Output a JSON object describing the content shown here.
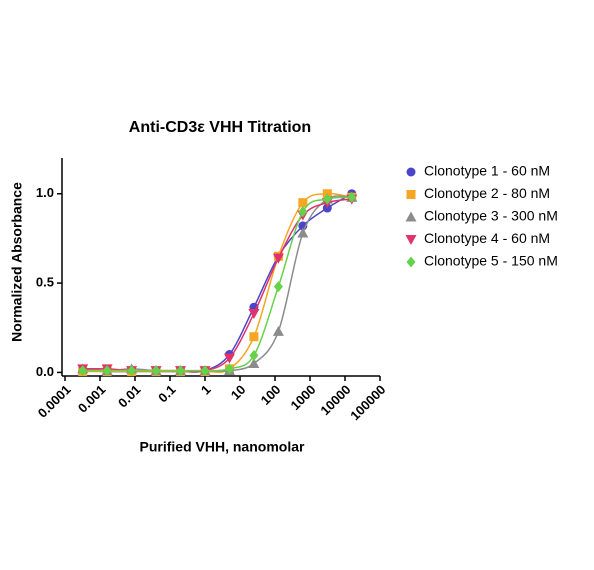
{
  "chart_data": {
    "type": "scatter-line",
    "title": "Anti-CD3ε VHH Titration",
    "x_label": "Purified VHH, nanomolar",
    "y_label": "Normalized Absorbance",
    "xscale": "log",
    "xlim": [
      0.0001,
      100000
    ],
    "xticks": [
      0.0001,
      0.001,
      0.01,
      0.1,
      1,
      10,
      100,
      1000,
      10000,
      100000
    ],
    "ylim": [
      -0.02,
      1.2
    ],
    "yticks": [
      {
        "value": 0,
        "label": "0.0"
      },
      {
        "value": 0.5,
        "label": "0.5"
      },
      {
        "value": 1,
        "label": "1.0"
      }
    ],
    "x": [
      0.00032,
      0.0016,
      0.008,
      0.04,
      0.2,
      1,
      5,
      25,
      125,
      625,
      3125,
      15625
    ],
    "series": [
      {
        "name": "Clonotype 1 - 60 nM",
        "color": "#4b45c9",
        "label_color": "#4b45c9",
        "marker": "circle",
        "values": [
          0.01,
          0.005,
          0.005,
          0.005,
          0.005,
          0.01,
          0.1,
          0.365,
          0.65,
          0.82,
          0.92,
          1.0
        ]
      },
      {
        "name": "Clonotype 2 - 80 nM",
        "color": "#f5a623",
        "label_color": "#f5a623",
        "marker": "square",
        "values": [
          0.005,
          0.005,
          0.005,
          0.005,
          0.005,
          0.005,
          0.02,
          0.2,
          0.65,
          0.95,
          1.0,
          0.98
        ]
      },
      {
        "name": "Clonotype 3 - 300 nM",
        "color": "#8c8c8c",
        "label_color": "#8c8c8c",
        "marker": "triangle",
        "values": [
          0.02,
          0.01,
          0.02,
          0.01,
          0.01,
          0.01,
          0.01,
          0.05,
          0.23,
          0.78,
          0.97,
          0.98
        ]
      },
      {
        "name": "Clonotype 4 - 60 nM",
        "color": "#e0336b",
        "label_color": "#e0336b",
        "marker": "triangle-down",
        "values": [
          0.02,
          0.02,
          0.01,
          0.01,
          0.01,
          0.01,
          0.08,
          0.33,
          0.64,
          0.88,
          0.95,
          0.97
        ]
      },
      {
        "name": "Clonotype 5 - 150 nM",
        "color": "#66d14a",
        "label_color": "#000000",
        "marker": "diamond",
        "values": [
          0.01,
          0.01,
          0.01,
          0.01,
          0.01,
          0.01,
          0.02,
          0.095,
          0.48,
          0.9,
          0.97,
          0.98
        ]
      }
    ]
  }
}
